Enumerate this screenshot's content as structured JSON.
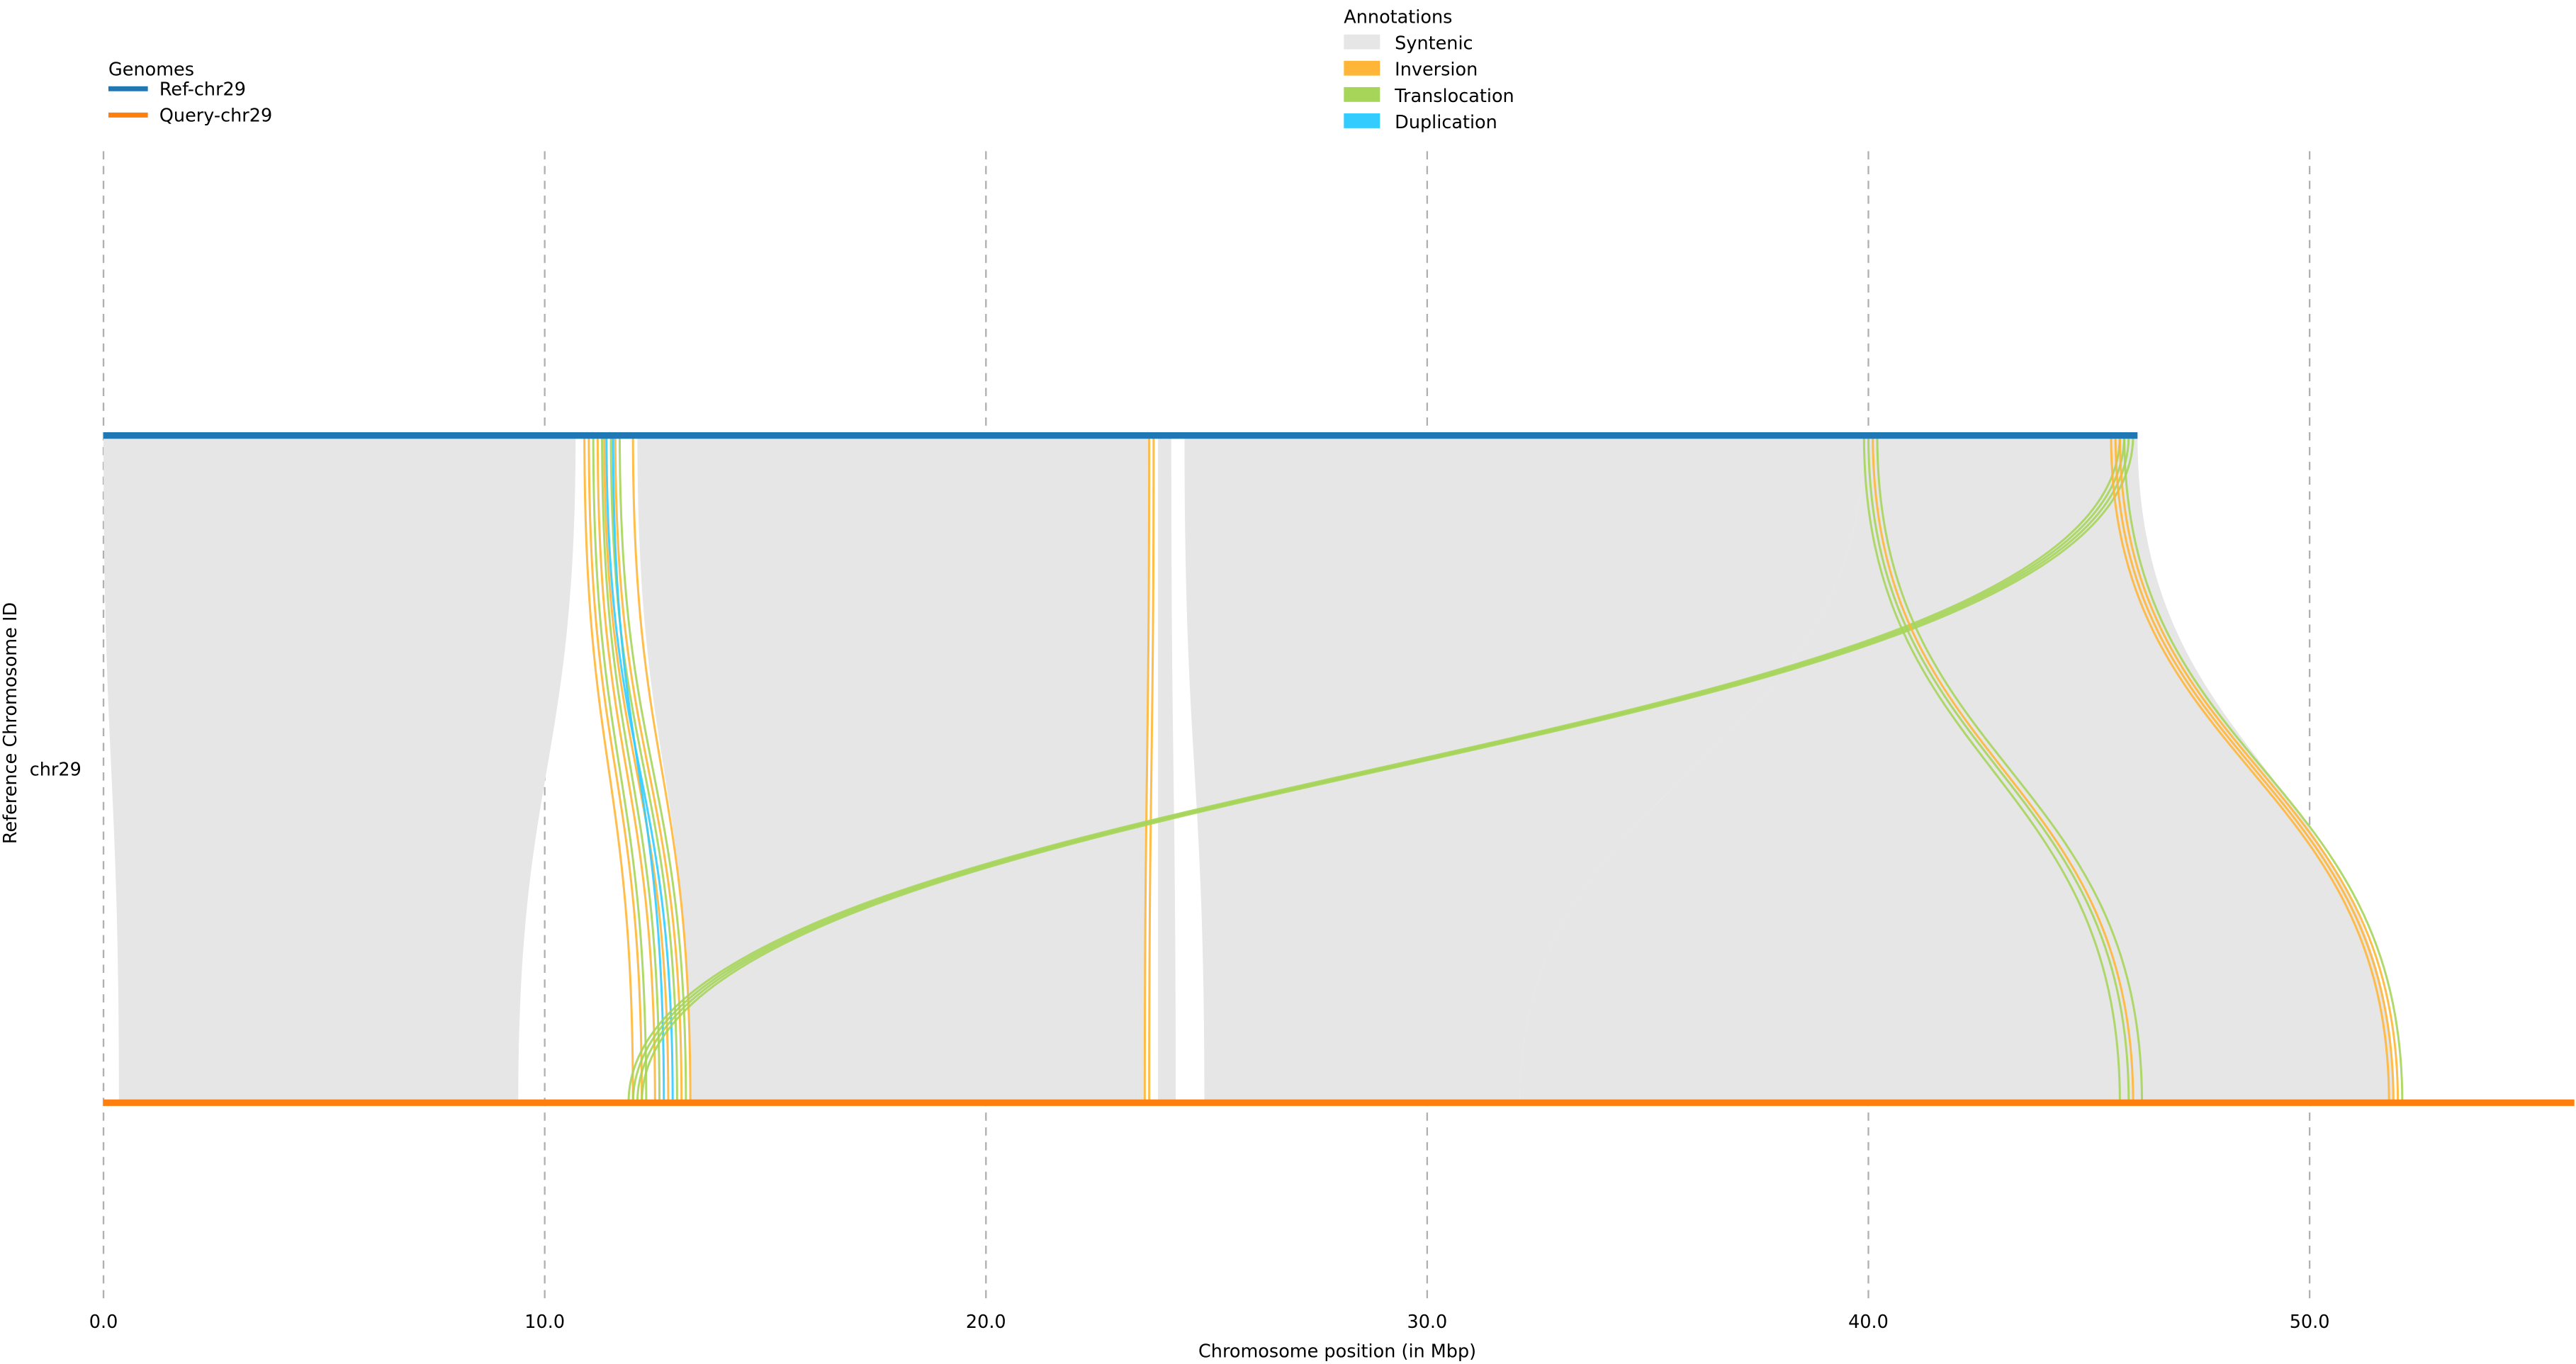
{
  "chart_data": {
    "type": "synteny",
    "xlabel": "Chromosome position (in Mbp)",
    "ylabel": "Reference Chromosome ID",
    "row_label": "chr29",
    "xlim": [
      0,
      56
    ],
    "xticks": [
      0,
      10,
      20,
      30,
      40,
      50
    ],
    "xtick_labels": [
      "0.0",
      "10.0",
      "20.0",
      "30.0",
      "40.0",
      "50.0"
    ],
    "grid": "vertical dashed",
    "genomes": {
      "title": "Genomes",
      "placement": "top-left",
      "items": [
        {
          "name": "Ref-chr29",
          "color": "#1f77b4",
          "length": 46.1
        },
        {
          "name": "Query-chr29",
          "color": "#ff7f0e",
          "length": 56.0
        }
      ]
    },
    "annotations": {
      "title": "Annotations",
      "placement": "top-center",
      "items": [
        {
          "name": "Syntenic",
          "key": "syn",
          "color": "#e6e6e6"
        },
        {
          "name": "Inversion",
          "key": "inv",
          "color": "#ffb638"
        },
        {
          "name": "Translocation",
          "key": "tra",
          "color": "#a6d55a"
        },
        {
          "name": "Duplication",
          "key": "dup",
          "color": "#33ccff"
        }
      ]
    },
    "syntenic_blocks": [
      {
        "ref": [
          0.0,
          10.7
        ],
        "qry": [
          0.35,
          9.4
        ]
      },
      {
        "ref": [
          12.1,
          23.7
        ],
        "qry": [
          13.3,
          23.6
        ]
      },
      {
        "ref": [
          23.9,
          24.2
        ],
        "qry": [
          23.9,
          24.3
        ]
      },
      {
        "ref": [
          24.5,
          39.9
        ],
        "qry": [
          24.95,
          32.1
        ]
      },
      {
        "ref": [
          39.9,
          46.1
        ],
        "qry": [
          32.1,
          51.9
        ]
      }
    ],
    "links": [
      {
        "type": "inv",
        "ref": 10.9,
        "qry": 12.0
      },
      {
        "type": "inv",
        "ref": 11.0,
        "qry": 12.2
      },
      {
        "type": "tra",
        "ref": 11.1,
        "qry": 12.3
      },
      {
        "type": "inv",
        "ref": 11.2,
        "qry": 12.5
      },
      {
        "type": "tra",
        "ref": 11.3,
        "qry": 12.6
      },
      {
        "type": "inv",
        "ref": 11.35,
        "qry": 12.8
      },
      {
        "type": "dup",
        "ref": 11.4,
        "qry": 12.9
      },
      {
        "type": "tra",
        "ref": 11.5,
        "qry": 13.0
      },
      {
        "type": "inv",
        "ref": 11.6,
        "qry": 13.1
      },
      {
        "type": "tra",
        "ref": 11.7,
        "qry": 13.2
      },
      {
        "type": "inv",
        "ref": 12.0,
        "qry": 13.3
      },
      {
        "type": "dup",
        "ref": 11.55,
        "qry": 12.7
      },
      {
        "type": "inv",
        "ref": 23.7,
        "qry": 23.6
      },
      {
        "type": "inv",
        "ref": 23.8,
        "qry": 23.7
      },
      {
        "type": "tra",
        "ref": 45.7,
        "qry": 11.9
      },
      {
        "type": "tra",
        "ref": 45.8,
        "qry": 12.0
      },
      {
        "type": "tra",
        "ref": 45.9,
        "qry": 12.1
      },
      {
        "type": "tra",
        "ref": 46.0,
        "qry": 12.2
      },
      {
        "type": "tra",
        "ref": 39.9,
        "qry": 45.7
      },
      {
        "type": "tra",
        "ref": 40.0,
        "qry": 45.9
      },
      {
        "type": "inv",
        "ref": 40.1,
        "qry": 46.0
      },
      {
        "type": "tra",
        "ref": 40.2,
        "qry": 46.2
      },
      {
        "type": "inv",
        "ref": 45.5,
        "qry": 51.8
      },
      {
        "type": "inv",
        "ref": 45.6,
        "qry": 51.9
      },
      {
        "type": "inv",
        "ref": 45.7,
        "qry": 52.0
      },
      {
        "type": "tra",
        "ref": 45.8,
        "qry": 52.1
      }
    ]
  }
}
